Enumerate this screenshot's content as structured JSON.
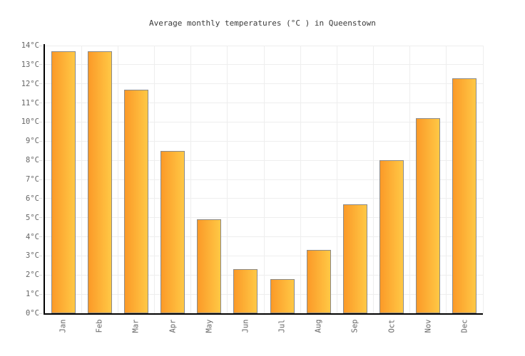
{
  "title": "Average monthly temperatures (°C ) in Queenstown",
  "colors": {
    "background": "#ffffff",
    "title_text": "#3a3a3a",
    "axis": "#000000",
    "gridline": "#eeeeee",
    "tick": "#dddddd",
    "label_text": "#666666",
    "bar_gradient_left": "#fb9a28",
    "bar_gradient_right": "#ffc845",
    "bar_border": "#8a8a8a"
  },
  "chart_data": {
    "type": "bar",
    "title": "Average monthly temperatures (°C ) in Queenstown",
    "categories": [
      "Jan",
      "Feb",
      "Mar",
      "Apr",
      "May",
      "Jun",
      "Jul",
      "Aug",
      "Sep",
      "Oct",
      "Nov",
      "Dec"
    ],
    "values": [
      13.7,
      13.7,
      11.7,
      8.5,
      4.9,
      2.3,
      1.8,
      3.3,
      5.7,
      8.0,
      10.2,
      12.3
    ],
    "unit": "°C",
    "xlabel": "",
    "ylabel": "",
    "ylim": [
      0,
      14
    ],
    "ytick_step": 1,
    "ytick_labels": [
      "0°C",
      "1°C",
      "2°C",
      "3°C",
      "4°C",
      "5°C",
      "6°C",
      "7°C",
      "8°C",
      "9°C",
      "10°C",
      "11°C",
      "12°C",
      "13°C",
      "14°C"
    ],
    "grid": true,
    "legend": false,
    "x_label_rotation": -90
  }
}
